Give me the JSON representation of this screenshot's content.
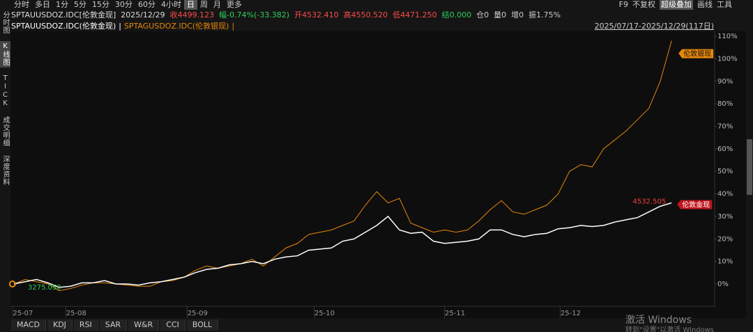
{
  "toolbar": {
    "periods": [
      "分时",
      "多日",
      "1分",
      "5分",
      "15分",
      "30分",
      "60分",
      "4小时",
      "日",
      "周",
      "月",
      "更多"
    ],
    "active": 8,
    "right": [
      "F9",
      "不复权",
      "超级叠加",
      "画线",
      "工具"
    ]
  },
  "quote": {
    "symbol": "SPTAUUSDOZ.IDC[伦敦金现]",
    "date": "2025/12/29",
    "items": [
      {
        "text": "收4499.123",
        "color": "#ff4a4a"
      },
      {
        "text": "幅-0.74%(-33.382)",
        "color": "#2fcf5a"
      },
      {
        "text": "开4532.410",
        "color": "#ff4a4a"
      },
      {
        "text": "高4550.520",
        "color": "#ff4a4a"
      },
      {
        "text": "低4471.250",
        "color": "#ff4a4a"
      },
      {
        "text": "结0.000",
        "color": "#2fcf5a"
      },
      {
        "text": "仓0",
        "color": "#cccccc"
      },
      {
        "text": "量0",
        "color": "#cccccc"
      },
      {
        "text": "增0",
        "color": "#cccccc"
      },
      {
        "text": "振1.75%",
        "color": "#cccccc"
      }
    ]
  },
  "range": "2025/07/17-2025/12/29(117日)",
  "sidebar": [
    "分时图",
    "K线图",
    "TICK",
    "成交明细",
    "深度资料"
  ],
  "sidebar_active": 1,
  "indicators": [
    "MACD",
    "KDJ",
    "RSI",
    "SAR",
    "W&R",
    "CCI",
    "BOLL"
  ],
  "watermark": [
    "激活 Windows",
    "转到\"设置\"以激活 Windows"
  ],
  "chart_data": {
    "type": "line",
    "series": [
      {
        "name": "SPTAUUSDOZ.IDC(伦敦金现)",
        "color": "#ffffff",
        "values": [
          0,
          1,
          2,
          0.5,
          -1.5,
          -1,
          0.5,
          0.5,
          1.5,
          0,
          0,
          -0.5,
          0.5,
          1,
          2,
          3,
          5,
          6.5,
          7,
          8.5,
          9,
          10,
          9,
          11,
          12,
          12.5,
          15,
          15.5,
          16,
          19,
          20,
          23,
          26,
          30,
          24,
          22.5,
          23,
          19,
          18,
          18.5,
          19,
          20,
          24,
          24,
          22,
          21,
          22,
          22.5,
          24.5,
          25,
          26,
          25.5,
          26,
          27.5,
          28.5,
          29.5,
          32,
          34.5,
          36
        ]
      },
      {
        "name": "SPTAGUSDOZ.IDC(伦敦银现)",
        "color": "#e8870c",
        "values": [
          0,
          2,
          1,
          0,
          -3,
          -2,
          -0.5,
          0.5,
          0.5,
          0,
          -0.5,
          -1,
          -1,
          1,
          1.5,
          3,
          6,
          8,
          7,
          8,
          9,
          11,
          8,
          12,
          16,
          18,
          22,
          23,
          24,
          26,
          28,
          35,
          41,
          36,
          38,
          27,
          25,
          23,
          24,
          23,
          24,
          28,
          33,
          37,
          32,
          31,
          33,
          35,
          40,
          50,
          53,
          52,
          60,
          64,
          68,
          73,
          78,
          90,
          108
        ]
      }
    ],
    "xlim": [
      -0.3,
      61.8
    ],
    "xticks": [
      {
        "value": 0.8,
        "label": "25-07"
      },
      {
        "value": 5.5,
        "label": "25-08"
      },
      {
        "value": 16.2,
        "label": "25-09"
      },
      {
        "value": 27.4,
        "label": "25-10"
      },
      {
        "value": 38.9,
        "label": "25-11"
      },
      {
        "value": 49.1,
        "label": "25-12"
      }
    ],
    "ylim": [
      -6.8,
      112.2
    ],
    "yticks": [
      {
        "value": 0,
        "label": "0%"
      },
      {
        "value": 10,
        "label": "10%"
      },
      {
        "value": 20,
        "label": "20%"
      },
      {
        "value": 30,
        "label": "30%"
      },
      {
        "value": 40,
        "label": "40%"
      },
      {
        "value": 50,
        "label": "50%"
      },
      {
        "value": 60,
        "label": "60%"
      },
      {
        "value": 70,
        "label": "70%"
      },
      {
        "value": 80,
        "label": "80%"
      },
      {
        "value": 90,
        "label": "90%"
      },
      {
        "value": 100,
        "label": "100%"
      },
      {
        "value": 110,
        "label": "110%"
      }
    ],
    "annotations": [
      {
        "text": "4532.505",
        "color": "#ff3b3b"
      },
      {
        "text": "伦敦金现",
        "color": "#c0141b"
      },
      {
        "text": "伦敦银现",
        "color": "#e8870c"
      },
      {
        "text": "3275.050",
        "color": "#2fcf5a"
      }
    ]
  }
}
